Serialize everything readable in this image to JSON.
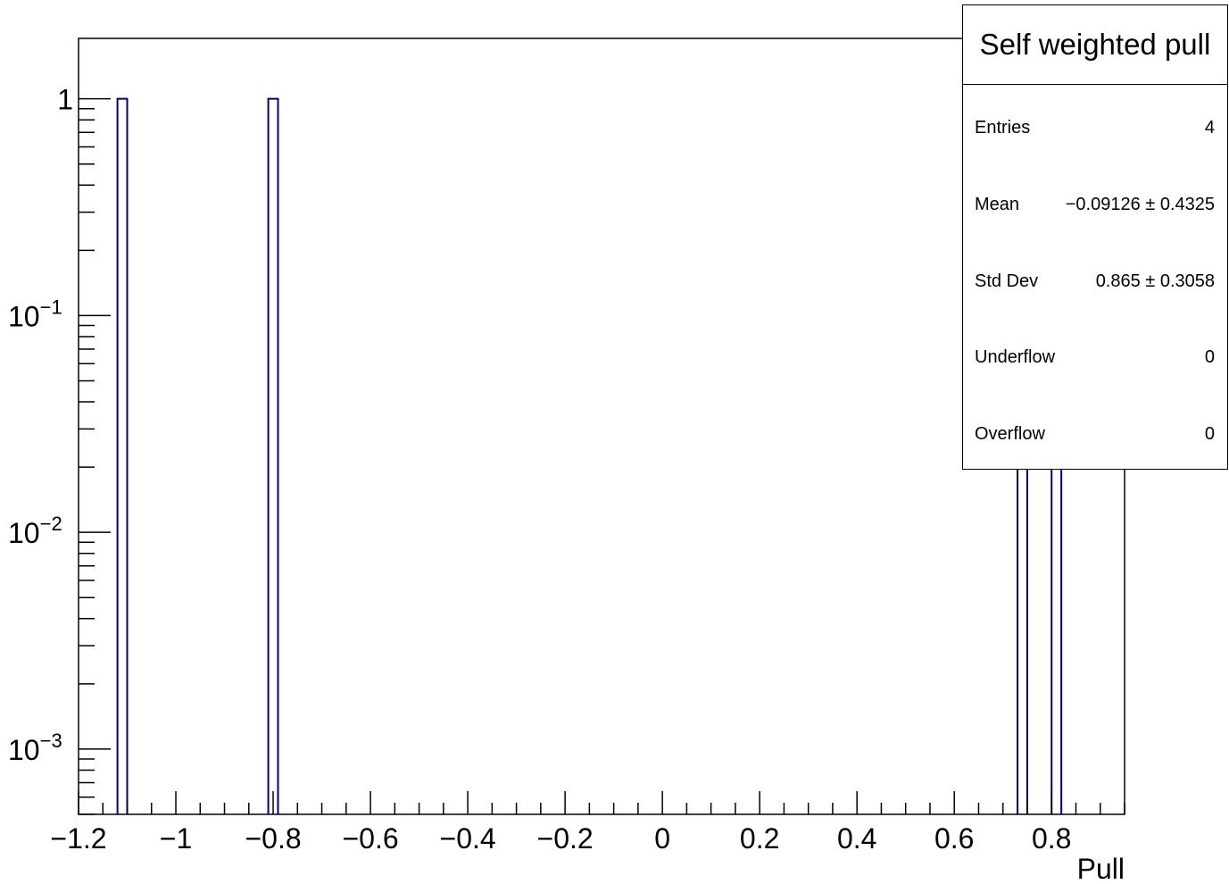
{
  "chart_data": {
    "type": "bar",
    "xlabel": "Pull",
    "ylabel": "",
    "xlim": [
      -1.2,
      0.95
    ],
    "ylim": [
      0.0005,
      1.9
    ],
    "yscale": "log",
    "bin_width": 0.02,
    "x_ticks": [
      "−1.2",
      "−1",
      "−0.8",
      "−0.6",
      "−0.4",
      "−0.2",
      "0",
      "0.2",
      "0.4",
      "0.6",
      "0.8"
    ],
    "x_tick_values": [
      -1.2,
      -1.0,
      -0.8,
      -0.6,
      -0.4,
      -0.2,
      0,
      0.2,
      0.4,
      0.6,
      0.8
    ],
    "y_ticks": [
      {
        "value": 1,
        "base": "1",
        "exp": ""
      },
      {
        "value": 0.1,
        "base": "10",
        "exp": "−1"
      },
      {
        "value": 0.01,
        "base": "10",
        "exp": "−2"
      },
      {
        "value": 0.001,
        "base": "10",
        "exp": "−3"
      }
    ],
    "bins": [
      {
        "x_low": -1.12,
        "x_high": -1.1,
        "value": 1
      },
      {
        "x_low": -0.81,
        "x_high": -0.79,
        "value": 1
      },
      {
        "x_low": 0.73,
        "x_high": 0.75,
        "value": 1
      },
      {
        "x_low": 0.8,
        "x_high": 0.82,
        "value": 1
      }
    ],
    "line_color": "#000080",
    "grid": false
  },
  "stats": {
    "title": "Self weighted pull",
    "rows": [
      {
        "label": "Entries",
        "value": "4"
      },
      {
        "label": "Mean",
        "value": "−0.09126 ± 0.4325"
      },
      {
        "label": "Std Dev",
        "value": "0.865 ± 0.3058"
      },
      {
        "label": "Underflow",
        "value": "0"
      },
      {
        "label": "Overflow",
        "value": "0"
      }
    ]
  }
}
